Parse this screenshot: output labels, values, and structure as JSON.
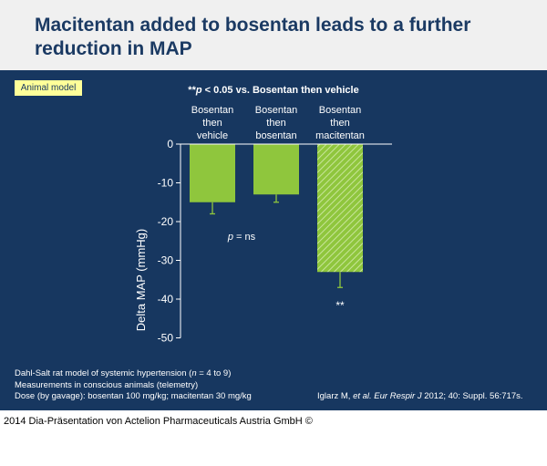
{
  "header": {
    "title_line1": "Macitentan added to bosentan leads to a further",
    "title_line2": "reduction in MAP"
  },
  "badge": "Animal model",
  "chart_data": {
    "type": "bar",
    "title_marker": "**",
    "title_p": "p",
    "title_rest": " < 0.05 vs. Bosentan then vehicle",
    "ylabel": "Delta MAP (mmHg)",
    "ylim": [
      -50,
      0
    ],
    "yticks": [
      0,
      -10,
      -20,
      -30,
      -40,
      -50
    ],
    "categories": [
      [
        "Bosentan",
        "then",
        "vehicle"
      ],
      [
        "Bosentan",
        "then",
        "bosentan"
      ],
      [
        "Bosentan",
        "then",
        "macitentan"
      ]
    ],
    "values": [
      -15,
      -13,
      -33
    ],
    "errors": [
      3,
      2,
      4
    ],
    "hatched": [
      false,
      false,
      true
    ],
    "bar_color": "#8fc63d",
    "annotations": [
      {
        "italic": "p",
        "text": " = ns"
      },
      {
        "text": "**"
      }
    ]
  },
  "notes": {
    "line1_a": "Dahl-Salt rat model of systemic hypertension (",
    "line1_n": "n",
    "line1_b": " = 4 to 9)",
    "line2": "Measurements in conscious animals (telemetry)",
    "line3": "Dose (by gavage): bosentan 100 mg/kg; macitentan 30 mg/kg"
  },
  "citation": {
    "authors": "Iglarz M, ",
    "etal": "et al.",
    "journal": " Eur Respir J",
    "rest": " 2012; 40: Suppl. 56:717s."
  },
  "footer": "2014 Dia-Präsentation von Actelion Pharmaceuticals Austria GmbH ©"
}
